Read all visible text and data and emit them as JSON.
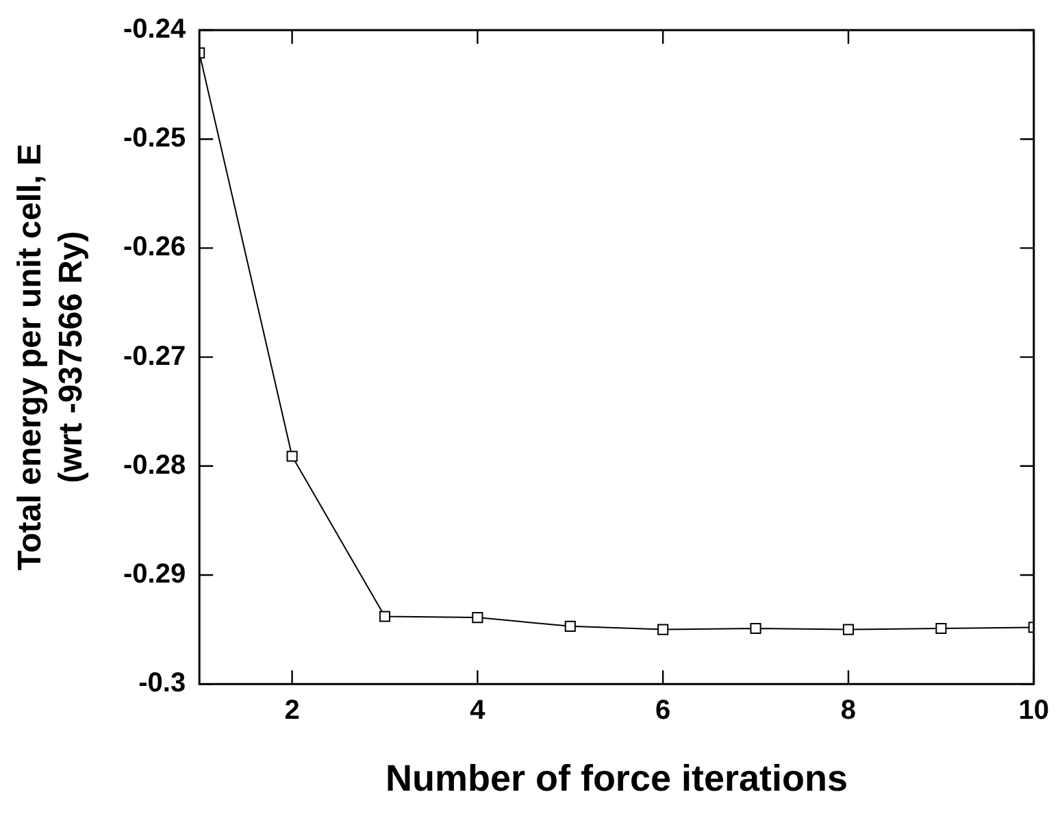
{
  "chart_data": {
    "type": "line",
    "xlabel": "Number of force iterations",
    "ylabel": "Total energy per unit cell, E\n(wrt -937566 Ry)",
    "x": [
      1,
      2,
      3,
      4,
      5,
      6,
      7,
      8,
      9,
      10
    ],
    "series": [
      {
        "color": "#000000",
        "values": [
          -0.2421,
          -0.2791,
          -0.2938,
          -0.2939,
          -0.2947,
          -0.295,
          -0.2949,
          -0.295,
          -0.2949,
          -0.2948
        ]
      }
    ],
    "xlim": [
      1,
      10
    ],
    "xticks": [
      2,
      4,
      6,
      8,
      10
    ],
    "ylim": [
      -0.3,
      -0.24
    ],
    "yticks": [
      -0.3,
      -0.29,
      -0.28,
      -0.27,
      -0.26,
      -0.25,
      -0.24
    ],
    "grid": false,
    "legend": false,
    "marker": "square",
    "line_style": "solid"
  }
}
